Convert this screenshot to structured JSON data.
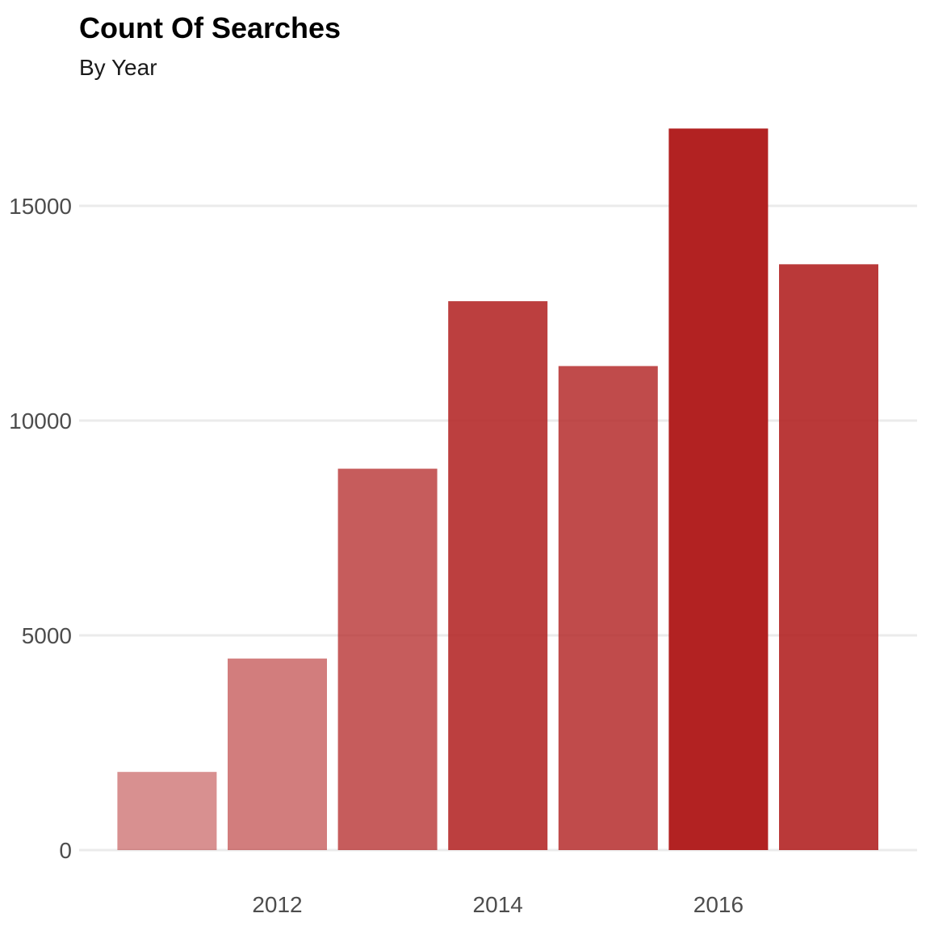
{
  "chart_data": {
    "type": "bar",
    "title": "Count Of Searches",
    "subtitle": "By Year",
    "xlabel": "",
    "ylabel": "",
    "categories": [
      2011,
      2012,
      2013,
      2014,
      2015,
      2016,
      2017
    ],
    "values": [
      1820,
      4460,
      8880,
      12780,
      11270,
      16800,
      13640
    ],
    "ylim": [
      0,
      17500
    ],
    "xlim": [
      2010.5,
      2017.5
    ],
    "x_ticks": [
      2012,
      2014,
      2016
    ],
    "x_tick_labels": [
      "2012",
      "2014",
      "2016"
    ],
    "y_ticks": [
      0,
      5000,
      10000,
      15000
    ],
    "y_tick_labels": [
      "0",
      "5000",
      "10000",
      "15000"
    ],
    "bar_color": "#b22222",
    "bar_opacity_min": 0.5,
    "bar_opacity_max": 1.0,
    "grid": true,
    "legend": "none"
  }
}
